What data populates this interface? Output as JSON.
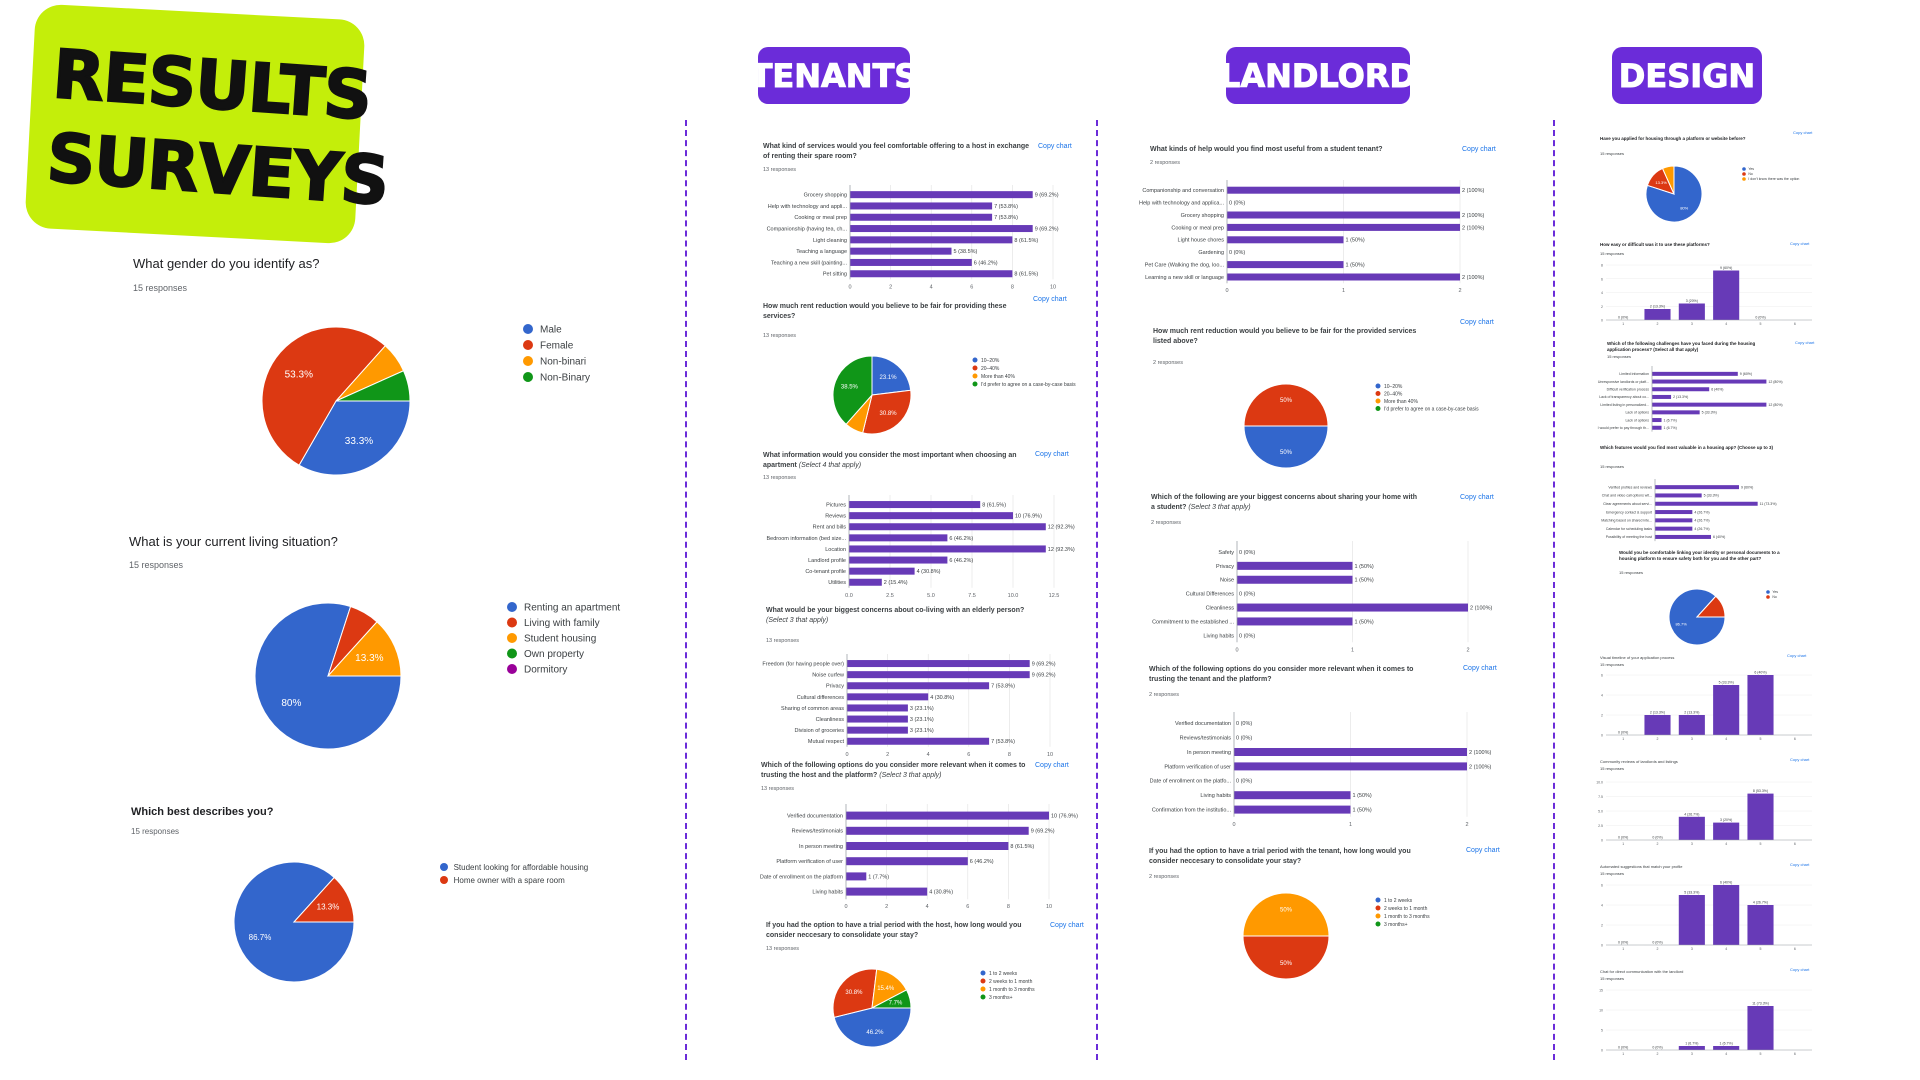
{
  "badge": {
    "line1": "RESULTS",
    "line2": "SURVEYS"
  },
  "headers": {
    "tenants": "TENANTS",
    "landlord": "LANDLORD",
    "design": "DESIGN"
  },
  "copy_chart": "Copy chart",
  "colors": {
    "purple": "#6b2cd9",
    "bar": "#673ab7",
    "blue": "#3366cc",
    "red": "#dc3912",
    "orange": "#ff9900",
    "green": "#109618",
    "magenta": "#990099",
    "lime": "#c4ee0a"
  },
  "left": {
    "gender": {
      "title": "What gender do you identify as?",
      "responses": "15 responses"
    },
    "living": {
      "title": "What is your current living situation?",
      "responses": "15 responses"
    },
    "describes": {
      "title": "Which best describes you?",
      "responses": "15 responses"
    }
  },
  "tenants": {
    "q1": {
      "title1": "What kind of services would you feel comfortable offering to a host in exchange",
      "title2": "of renting their spare room?",
      "responses": "13 responses"
    },
    "q2": {
      "title1": "How much rent reduction would you believe to be fair for providing these",
      "title2": "services?",
      "responses": "13 responses"
    },
    "q3": {
      "title1": "What information would you consider the most important when choosing an",
      "title2": "apartment",
      "title2i": "(Select 4 that apply)",
      "responses": "13 responses"
    },
    "q4": {
      "title1": "What would be your biggest concerns about co-living with an elderly person?",
      "title2i": "(Select 3 that apply)",
      "responses": "13 responses"
    },
    "q5": {
      "title1": "Which of the following options do you consider more relevant when it comes to",
      "title2": "trusting the host and the platform?",
      "title2i": "(Select 3 that apply)",
      "responses": "13 responses"
    },
    "q6": {
      "title1": "If you had the option to have a trial period with the host, how long would you",
      "title2": "consider neccesary to consolidate your stay?",
      "responses": "13 responses"
    }
  },
  "landlord": {
    "q1": {
      "title1": "What kinds of help would you find most useful from a student tenant?",
      "responses": "2 responses"
    },
    "q2": {
      "title1": "How much rent reduction would you believe to be fair for the provided services",
      "title2": "listed above?",
      "responses": "2 responses"
    },
    "q3": {
      "title1": "Which of the following are your biggest concerns about sharing your home with",
      "title2": "a student?",
      "title2i": "(Select 3 that apply)",
      "responses": "2 responses"
    },
    "q4": {
      "title1": "Which of the following options do you consider more relevant when it comes to",
      "title2": "trusting the tenant and the platform?",
      "responses": "2 responses"
    },
    "q5": {
      "title1": "If you had the option to have a trial period with the tenant, how long would you",
      "title2": "consider neccesary to consolidate your stay?",
      "responses": "2 responses"
    }
  },
  "design": {
    "q1": {
      "title": "Have you applied for housing through a platform or website before?",
      "responses": "15 responses"
    },
    "q2": {
      "title": "How easy or difficult was it to use these platforms?",
      "responses": "15 responses"
    },
    "q3": {
      "title1": "Which of the following challenges have you faced during the housing",
      "title2": "application process? (Select all that apply)",
      "responses": "15 responses"
    },
    "q4": {
      "title": "Which features would you find most valuable in a housing app? (Choose up to 3)",
      "responses": "15 responses"
    },
    "q5": {
      "title1": "Would you be comfortable linking your identity or personal documents to a",
      "title2": "housing platform to ensure safety both for you and the other part?",
      "responses": "15 responses"
    },
    "q6": {
      "title": "Visual timeline of your application process",
      "responses": "15 responses"
    },
    "q7": {
      "title": "Community reviews of landlords and listings",
      "responses": "15 responses"
    },
    "q8": {
      "title": "Automated suggestions that match your profile",
      "responses": "15 responses"
    },
    "q9": {
      "title": "Chat for direct communication with the landlord",
      "responses": "15 responses"
    }
  },
  "chart_data": [
    {
      "id": "gender",
      "type": "pie",
      "title": "What gender do you identify as?",
      "legend": [
        "Male",
        "Female",
        "Non-binari",
        "Non-Binary"
      ],
      "values": [
        33.3,
        53.3,
        6.7,
        6.7
      ],
      "labels": [
        "33.3%",
        "53.3%",
        "",
        ""
      ],
      "colors": [
        "#3366cc",
        "#dc3912",
        "#ff9900",
        "#109618"
      ]
    },
    {
      "id": "living",
      "type": "pie",
      "title": "What is your current living situation?",
      "legend": [
        "Renting an apartment",
        "Living with family",
        "Student housing",
        "Own property",
        "Dormitory"
      ],
      "values": [
        80,
        6.7,
        13.3,
        0,
        0
      ],
      "labels": [
        "80%",
        "",
        "13.3%",
        "",
        ""
      ],
      "colors": [
        "#3366cc",
        "#dc3912",
        "#ff9900",
        "#109618",
        "#990099"
      ]
    },
    {
      "id": "describes",
      "type": "pie",
      "title": "Which best describes you?",
      "legend": [
        "Student looking for affordable housing",
        "Home owner with a spare room"
      ],
      "values": [
        86.7,
        13.3
      ],
      "labels": [
        "86.7%",
        "13.3%"
      ],
      "colors": [
        "#3366cc",
        "#dc3912"
      ]
    },
    {
      "id": "t_services",
      "type": "bar",
      "orientation": "horizontal",
      "categories": [
        "Grocery shopping",
        "Help with technology and appli...",
        "Cooking or meal prep",
        "Companionship (having tea, ch...",
        "Light cleaning",
        "Teaching a language",
        "Teaching a new skill (painting...",
        "Pet sitting"
      ],
      "values": [
        9,
        7,
        7,
        9,
        8,
        5,
        6,
        8
      ],
      "labels": [
        "9 (69.2%)",
        "7 (53.8%)",
        "7 (53.8%)",
        "9 (69.2%)",
        "8 (61.5%)",
        "5 (38.5%)",
        "6 (46.2%)",
        "8 (61.5%)"
      ],
      "xlim": [
        0,
        10
      ],
      "ticks": [
        "0",
        "2",
        "4",
        "6",
        "8",
        "10"
      ]
    },
    {
      "id": "t_rent",
      "type": "pie",
      "legend": [
        "10–20%",
        "20–40%",
        "More than 40%",
        "I'd prefer to agree on a case-by-case basis"
      ],
      "values": [
        23.1,
        30.8,
        7.7,
        38.5
      ],
      "labels": [
        "23.1%",
        "30.8%",
        "",
        "38.5%"
      ],
      "colors": [
        "#3366cc",
        "#dc3912",
        "#ff9900",
        "#109618"
      ]
    },
    {
      "id": "t_info",
      "type": "bar",
      "orientation": "horizontal",
      "categories": [
        "Pictures",
        "Reviews",
        "Rent and bills",
        "Bedroom information (bed size...",
        "Location",
        "Landlord profile",
        "Co-tenant profile",
        "Utilities"
      ],
      "values": [
        8,
        10,
        12,
        6,
        12,
        6,
        4,
        2
      ],
      "labels": [
        "8 (61.5%)",
        "10 (76.9%)",
        "12 (92.3%)",
        "6 (46.2%)",
        "12 (92.3%)",
        "6 (46.2%)",
        "4 (30.8%)",
        "2 (15.4%)"
      ],
      "xlim": [
        0,
        12.5
      ],
      "ticks": [
        "0.0",
        "2.5",
        "5.0",
        "7.5",
        "10.0",
        "12.5"
      ]
    },
    {
      "id": "t_concerns",
      "type": "bar",
      "orientation": "horizontal",
      "categories": [
        "Freedom (for having people over)",
        "Noise curfew",
        "Privacy",
        "Cultural differences",
        "Sharing of common areas",
        "Cleanliness",
        "Division of groceries",
        "Mutual respect"
      ],
      "values": [
        9,
        9,
        7,
        4,
        3,
        3,
        3,
        7
      ],
      "labels": [
        "9 (69.2%)",
        "9 (69.2%)",
        "7 (53.8%)",
        "4 (30.8%)",
        "3 (23.1%)",
        "3 (23.1%)",
        "3 (23.1%)",
        "7 (53.8%)"
      ],
      "xlim": [
        0,
        10
      ],
      "ticks": [
        "0",
        "2",
        "4",
        "6",
        "8",
        "10"
      ]
    },
    {
      "id": "t_trust",
      "type": "bar",
      "orientation": "horizontal",
      "categories": [
        "Verified documentation",
        "Reviews/testimonials",
        "In person meeting",
        "Platform verification of user",
        "Date of enrollment on the platform",
        "Living habits"
      ],
      "values": [
        10,
        9,
        8,
        6,
        1,
        4
      ],
      "labels": [
        "10 (76.9%)",
        "9 (69.2%)",
        "8 (61.5%)",
        "6 (46.2%)",
        "1 (7.7%)",
        "4 (30.8%)"
      ],
      "xlim": [
        0,
        10
      ],
      "ticks": [
        "0",
        "2",
        "4",
        "6",
        "8",
        "10"
      ]
    },
    {
      "id": "t_trial",
      "type": "pie",
      "legend": [
        "1 to 2 weeks",
        "2 weeks to 1 month",
        "1 month to 3 months",
        "3 months+"
      ],
      "values": [
        46.2,
        30.8,
        15.4,
        7.7
      ],
      "labels": [
        "46.2%",
        "30.8%",
        "15.4%",
        "7.7%"
      ],
      "colors": [
        "#3366cc",
        "#dc3912",
        "#ff9900",
        "#109618"
      ]
    },
    {
      "id": "l_help",
      "type": "bar",
      "orientation": "horizontal",
      "categories": [
        "Companionship and conversation",
        "Help with technology and applica...",
        "Grocery shopping",
        "Cooking or meal prep",
        "Light house chores",
        "Gardening",
        "Pet Care (Walking the dog, loo...",
        "Learning a new skill or language"
      ],
      "values": [
        2,
        0,
        2,
        2,
        1,
        0,
        1,
        2
      ],
      "labels": [
        "2 (100%)",
        "0 (0%)",
        "2 (100%)",
        "2 (100%)",
        "1 (50%)",
        "0 (0%)",
        "1 (50%)",
        "2 (100%)"
      ],
      "xlim": [
        0,
        2
      ],
      "ticks": [
        "0",
        "1",
        "2"
      ]
    },
    {
      "id": "l_rent",
      "type": "pie",
      "legend": [
        "10–20%",
        "20–40%",
        "More than 40%",
        "I'd prefer to agree on a case-by-case basis"
      ],
      "values": [
        50,
        50,
        0,
        0
      ],
      "labels": [
        "50%",
        "50%",
        "",
        ""
      ],
      "colors": [
        "#3366cc",
        "#dc3912",
        "#ff9900",
        "#109618"
      ]
    },
    {
      "id": "l_concerns",
      "type": "bar",
      "orientation": "horizontal",
      "categories": [
        "Safety",
        "Privacy",
        "Noise",
        "Cultural Differences",
        "Cleanliness",
        "Commitment to the established ...",
        "Living habits"
      ],
      "values": [
        0,
        1,
        1,
        0,
        2,
        1,
        0
      ],
      "labels": [
        "0 (0%)",
        "1 (50%)",
        "1 (50%)",
        "0 (0%)",
        "2 (100%)",
        "1 (50%)",
        "0 (0%)"
      ],
      "xlim": [
        0,
        2
      ],
      "ticks": [
        "0",
        "1",
        "2"
      ]
    },
    {
      "id": "l_trust",
      "type": "bar",
      "orientation": "horizontal",
      "categories": [
        "Verified documentation",
        "Reviews/testimonials",
        "In person meeting",
        "Platform verification of user",
        "Date of enrollment on the platfo...",
        "Living habits",
        "Confirmation from the institutio..."
      ],
      "values": [
        0,
        0,
        2,
        2,
        0,
        1,
        1
      ],
      "labels": [
        "0 (0%)",
        "0 (0%)",
        "2 (100%)",
        "2 (100%)",
        "0 (0%)",
        "1 (50%)",
        "1 (50%)"
      ],
      "xlim": [
        0,
        2
      ],
      "ticks": [
        "0",
        "1",
        "2"
      ]
    },
    {
      "id": "l_trial",
      "type": "pie",
      "legend": [
        "1 to 2 weeks",
        "2 weeks to 1 month",
        "1 month to 3 months",
        "3 months+"
      ],
      "values": [
        0,
        50,
        50,
        0
      ],
      "labels": [
        "",
        "50%",
        "50%",
        ""
      ],
      "colors": [
        "#3366cc",
        "#dc3912",
        "#ff9900",
        "#109618"
      ]
    },
    {
      "id": "d_applied",
      "type": "pie",
      "legend": [
        "Yes",
        "No",
        "I don't know there was the option"
      ],
      "values": [
        80,
        13.3,
        6.7
      ],
      "labels": [
        "80%",
        "13.3%",
        ""
      ],
      "colors": [
        "#3366cc",
        "#dc3912",
        "#ff9900"
      ]
    },
    {
      "id": "d_easy",
      "type": "bar",
      "orientation": "vertical",
      "categories": [
        "1",
        "2",
        "3",
        "4",
        "5",
        "6"
      ],
      "values": [
        0,
        2,
        3,
        9,
        0,
        0
      ],
      "labels": [
        "0 (0%)",
        "2 (13.3%)",
        "3 (20%)",
        "9 (60%)",
        "0 (0%)",
        ""
      ],
      "ylim": [
        0,
        10
      ],
      "ticks": [
        "0",
        "2",
        "4",
        "6",
        "8"
      ]
    },
    {
      "id": "d_challenges",
      "type": "bar",
      "orientation": "horizontal",
      "categories": [
        "Limited information",
        "Unresponsive landlords or platf...",
        "Difficult verification process",
        "Lack of transparency about co...",
        "Limited listing in personalized...",
        "Lack of options",
        "Lack of options",
        "I would prefer to pay through th..."
      ],
      "values": [
        9,
        12,
        6,
        2,
        12,
        5,
        1,
        1
      ],
      "labels": [
        "9 (60%)",
        "12 (80%)",
        "6 (40%)",
        "2 (13.3%)",
        "12 (80%)",
        "5 (33.3%)",
        "1 (6.7%)",
        "1 (6.7%)"
      ],
      "xlim": [
        0,
        15
      ],
      "ticks": []
    },
    {
      "id": "d_features",
      "type": "bar",
      "orientation": "horizontal",
      "categories": [
        "Verified profiles and reviews",
        "Chat and video call options wit...",
        "Clear agreements about servi...",
        "Emergency contact & support",
        "Matching based on shared inte...",
        "Calendar for scheduling tasks",
        "Possibility of meeting the host"
      ],
      "values": [
        9,
        5,
        11,
        4,
        4,
        4,
        6
      ],
      "labels": [
        "9 (60%)",
        "5 (33.3%)",
        "11 (73.3%)",
        "4 (26.7%)",
        "4 (26.7%)",
        "4 (26.7%)",
        "6 (40%)"
      ],
      "xlim": [
        0,
        15
      ],
      "ticks": []
    },
    {
      "id": "d_identity",
      "type": "pie",
      "legend": [
        "Yes",
        "No"
      ],
      "values": [
        86.7,
        13.3
      ],
      "labels": [
        "86.7%",
        ""
      ],
      "colors": [
        "#3366cc",
        "#dc3912"
      ]
    },
    {
      "id": "d_timeline",
      "type": "bar",
      "orientation": "vertical",
      "categories": [
        "1",
        "2",
        "3",
        "4",
        "5",
        "6"
      ],
      "values": [
        0,
        2,
        2,
        5,
        6,
        0
      ],
      "labels": [
        "0 (0%)",
        "2 (13.3%)",
        "2 (13.3%)",
        "5 (33.3%)",
        "6 (40%)",
        ""
      ],
      "ylim": [
        0,
        6
      ],
      "ticks": [
        "0",
        "2",
        "4",
        "6"
      ]
    },
    {
      "id": "d_reviews",
      "type": "bar",
      "orientation": "vertical",
      "categories": [
        "1",
        "2",
        "3",
        "4",
        "5",
        "6"
      ],
      "values": [
        0,
        0,
        4,
        3,
        8,
        0
      ],
      "labels": [
        "0 (0%)",
        "0 (0%)",
        "4 (26.7%)",
        "3 (20%)",
        "8 (53.3%)",
        ""
      ],
      "ylim": [
        0,
        10
      ],
      "ticks": [
        "0",
        "2.5",
        "5.0",
        "7.5",
        "10.0"
      ]
    },
    {
      "id": "d_suggestions",
      "type": "bar",
      "orientation": "vertical",
      "categories": [
        "1",
        "2",
        "3",
        "4",
        "5",
        "6"
      ],
      "values": [
        0,
        0,
        5,
        6,
        4,
        0
      ],
      "labels": [
        "0 (0%)",
        "0 (0%)",
        "5 (33.3%)",
        "6 (40%)",
        "4 (26.7%)",
        ""
      ],
      "ylim": [
        0,
        6
      ],
      "ticks": [
        "0",
        "2",
        "4",
        "6"
      ]
    },
    {
      "id": "d_chat",
      "type": "bar",
      "orientation": "vertical",
      "categories": [
        "1",
        "2",
        "3",
        "4",
        "5",
        "6"
      ],
      "values": [
        0,
        0,
        1,
        1,
        11,
        0
      ],
      "labels": [
        "0 (0%)",
        "0 (0%)",
        "1 (6.7%)",
        "1 (6.7%)",
        "11 (73.3%)",
        ""
      ],
      "ylim": [
        0,
        15
      ],
      "ticks": [
        "0",
        "5",
        "10",
        "15"
      ]
    }
  ]
}
